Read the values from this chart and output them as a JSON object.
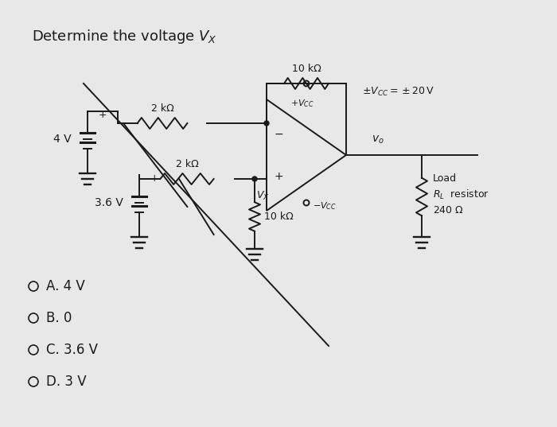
{
  "bg_color": "#e8e8e8",
  "text_color": "#1a1a1a",
  "title": "Determine the voltage V",
  "title_sub": "X",
  "options": [
    {
      "letter": "A",
      "value": "4 V"
    },
    {
      "letter": "B",
      "value": "0"
    },
    {
      "letter": "C",
      "value": "3.6 V"
    },
    {
      "letter": "D",
      "value": "3 V"
    }
  ],
  "r1_label": "2 kΩ",
  "r2_label": "2 kΩ",
  "r_feedback_label": "10 kΩ",
  "r_bottom_label": "10 kΩ",
  "rl_label": "R_L",
  "v1_label": "4 V",
  "v2_label": "3.6 V",
  "vcc_plus_label": "+V_{CC}",
  "vcc_minus_label": "-V_{CC}",
  "vcc_supply_label": "\\pm V_{CC}=\\pm 20\\,\\mathrm{V}",
  "vx_label": "V_X",
  "vo_label": "v_o",
  "load_line1": "Load",
  "load_line2": "R_L  resistor",
  "load_line3": "240 \\Omega"
}
